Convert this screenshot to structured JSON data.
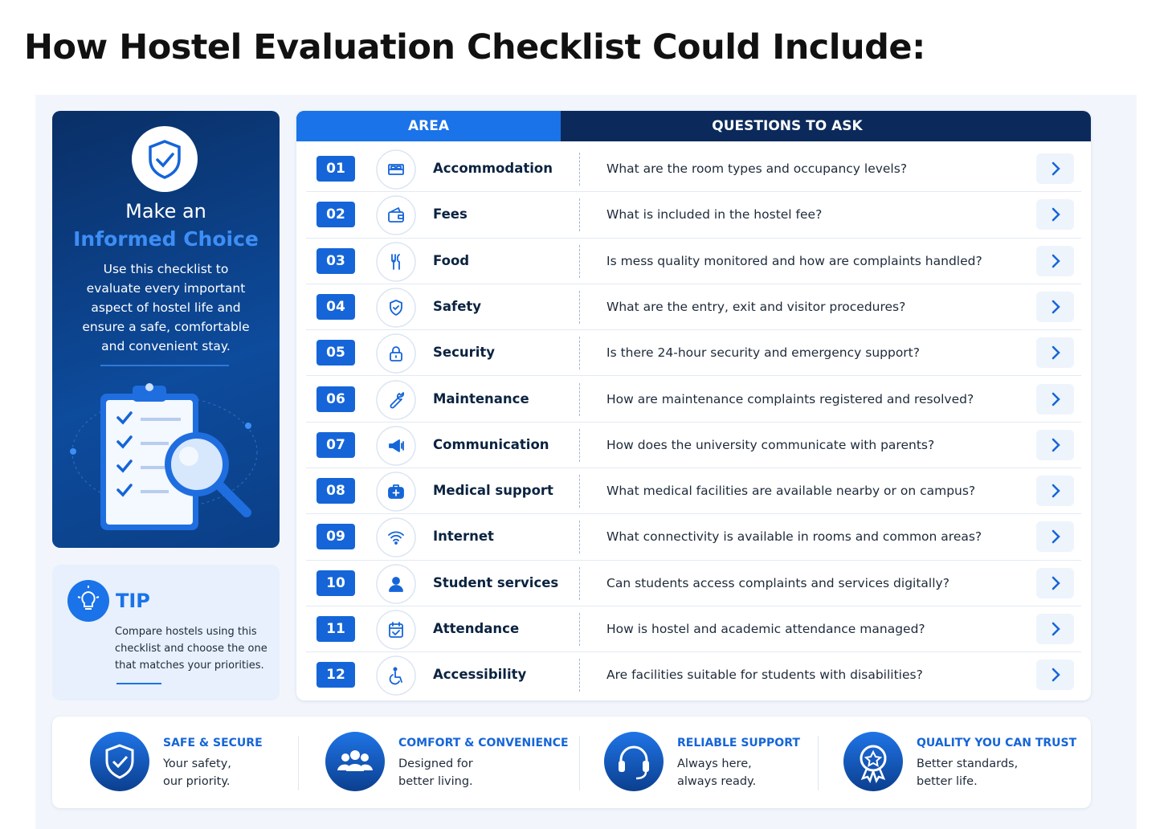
{
  "title": "How Hostel Evaluation Checklist Could Include:",
  "sidebar": {
    "heading": "Make an",
    "highlight": "Informed Choice",
    "text": "Use this checklist to evaluate every important aspect of hostel life and ensure a safe, comfortable and convenient stay.",
    "tip": {
      "title": "TIP",
      "text": "Compare hostels using this checklist and choose the one that matches your priorities."
    }
  },
  "table": {
    "headers": [
      "AREA",
      "QUESTIONS TO ASK"
    ],
    "rows": [
      {
        "number": "01",
        "area": "Accommodation",
        "question": "What are the room types and occupancy levels?"
      },
      {
        "number": "02",
        "area": "Fees",
        "question": "What is included in the hostel fee?"
      },
      {
        "number": "03",
        "area": "Food",
        "question": "Is mess quality monitored and how are complaints handled?"
      },
      {
        "number": "04",
        "area": "Safety",
        "question": "What are the entry, exit and visitor procedures?"
      },
      {
        "number": "05",
        "area": "Security",
        "question": "Is there 24-hour security and emergency support?"
      },
      {
        "number": "06",
        "area": "Maintenance",
        "question": "How are maintenance complaints registered and resolved?"
      },
      {
        "number": "07",
        "area": "Communication",
        "question": "How does the university communicate with parents?"
      },
      {
        "number": "08",
        "area": "Medical support",
        "question": "What medical facilities are available nearby or on campus?"
      },
      {
        "number": "09",
        "area": "Internet",
        "question": "What connectivity is available in rooms and common areas?"
      },
      {
        "number": "10",
        "area": "Student services",
        "question": "Can students access complaints and services digitally?"
      },
      {
        "number": "11",
        "area": "Attendance",
        "question": "How is hostel and academic attendance managed?"
      },
      {
        "number": "12",
        "area": "Accessibility",
        "question": "Are facilities suitable for students with disabilities?"
      }
    ]
  },
  "features": [
    {
      "title": "SAFE & SECURE",
      "lines": [
        "Your safety,",
        "our priority."
      ]
    },
    {
      "title": "COMFORT & CONVENIENCE",
      "lines": [
        "Designed for",
        "better living."
      ]
    },
    {
      "title": "RELIABLE SUPPORT",
      "lines": [
        "Always here,",
        "always ready."
      ]
    },
    {
      "title": "QUALITY YOU CAN TRUST",
      "lines": [
        "Better standards,",
        "better life."
      ]
    }
  ]
}
